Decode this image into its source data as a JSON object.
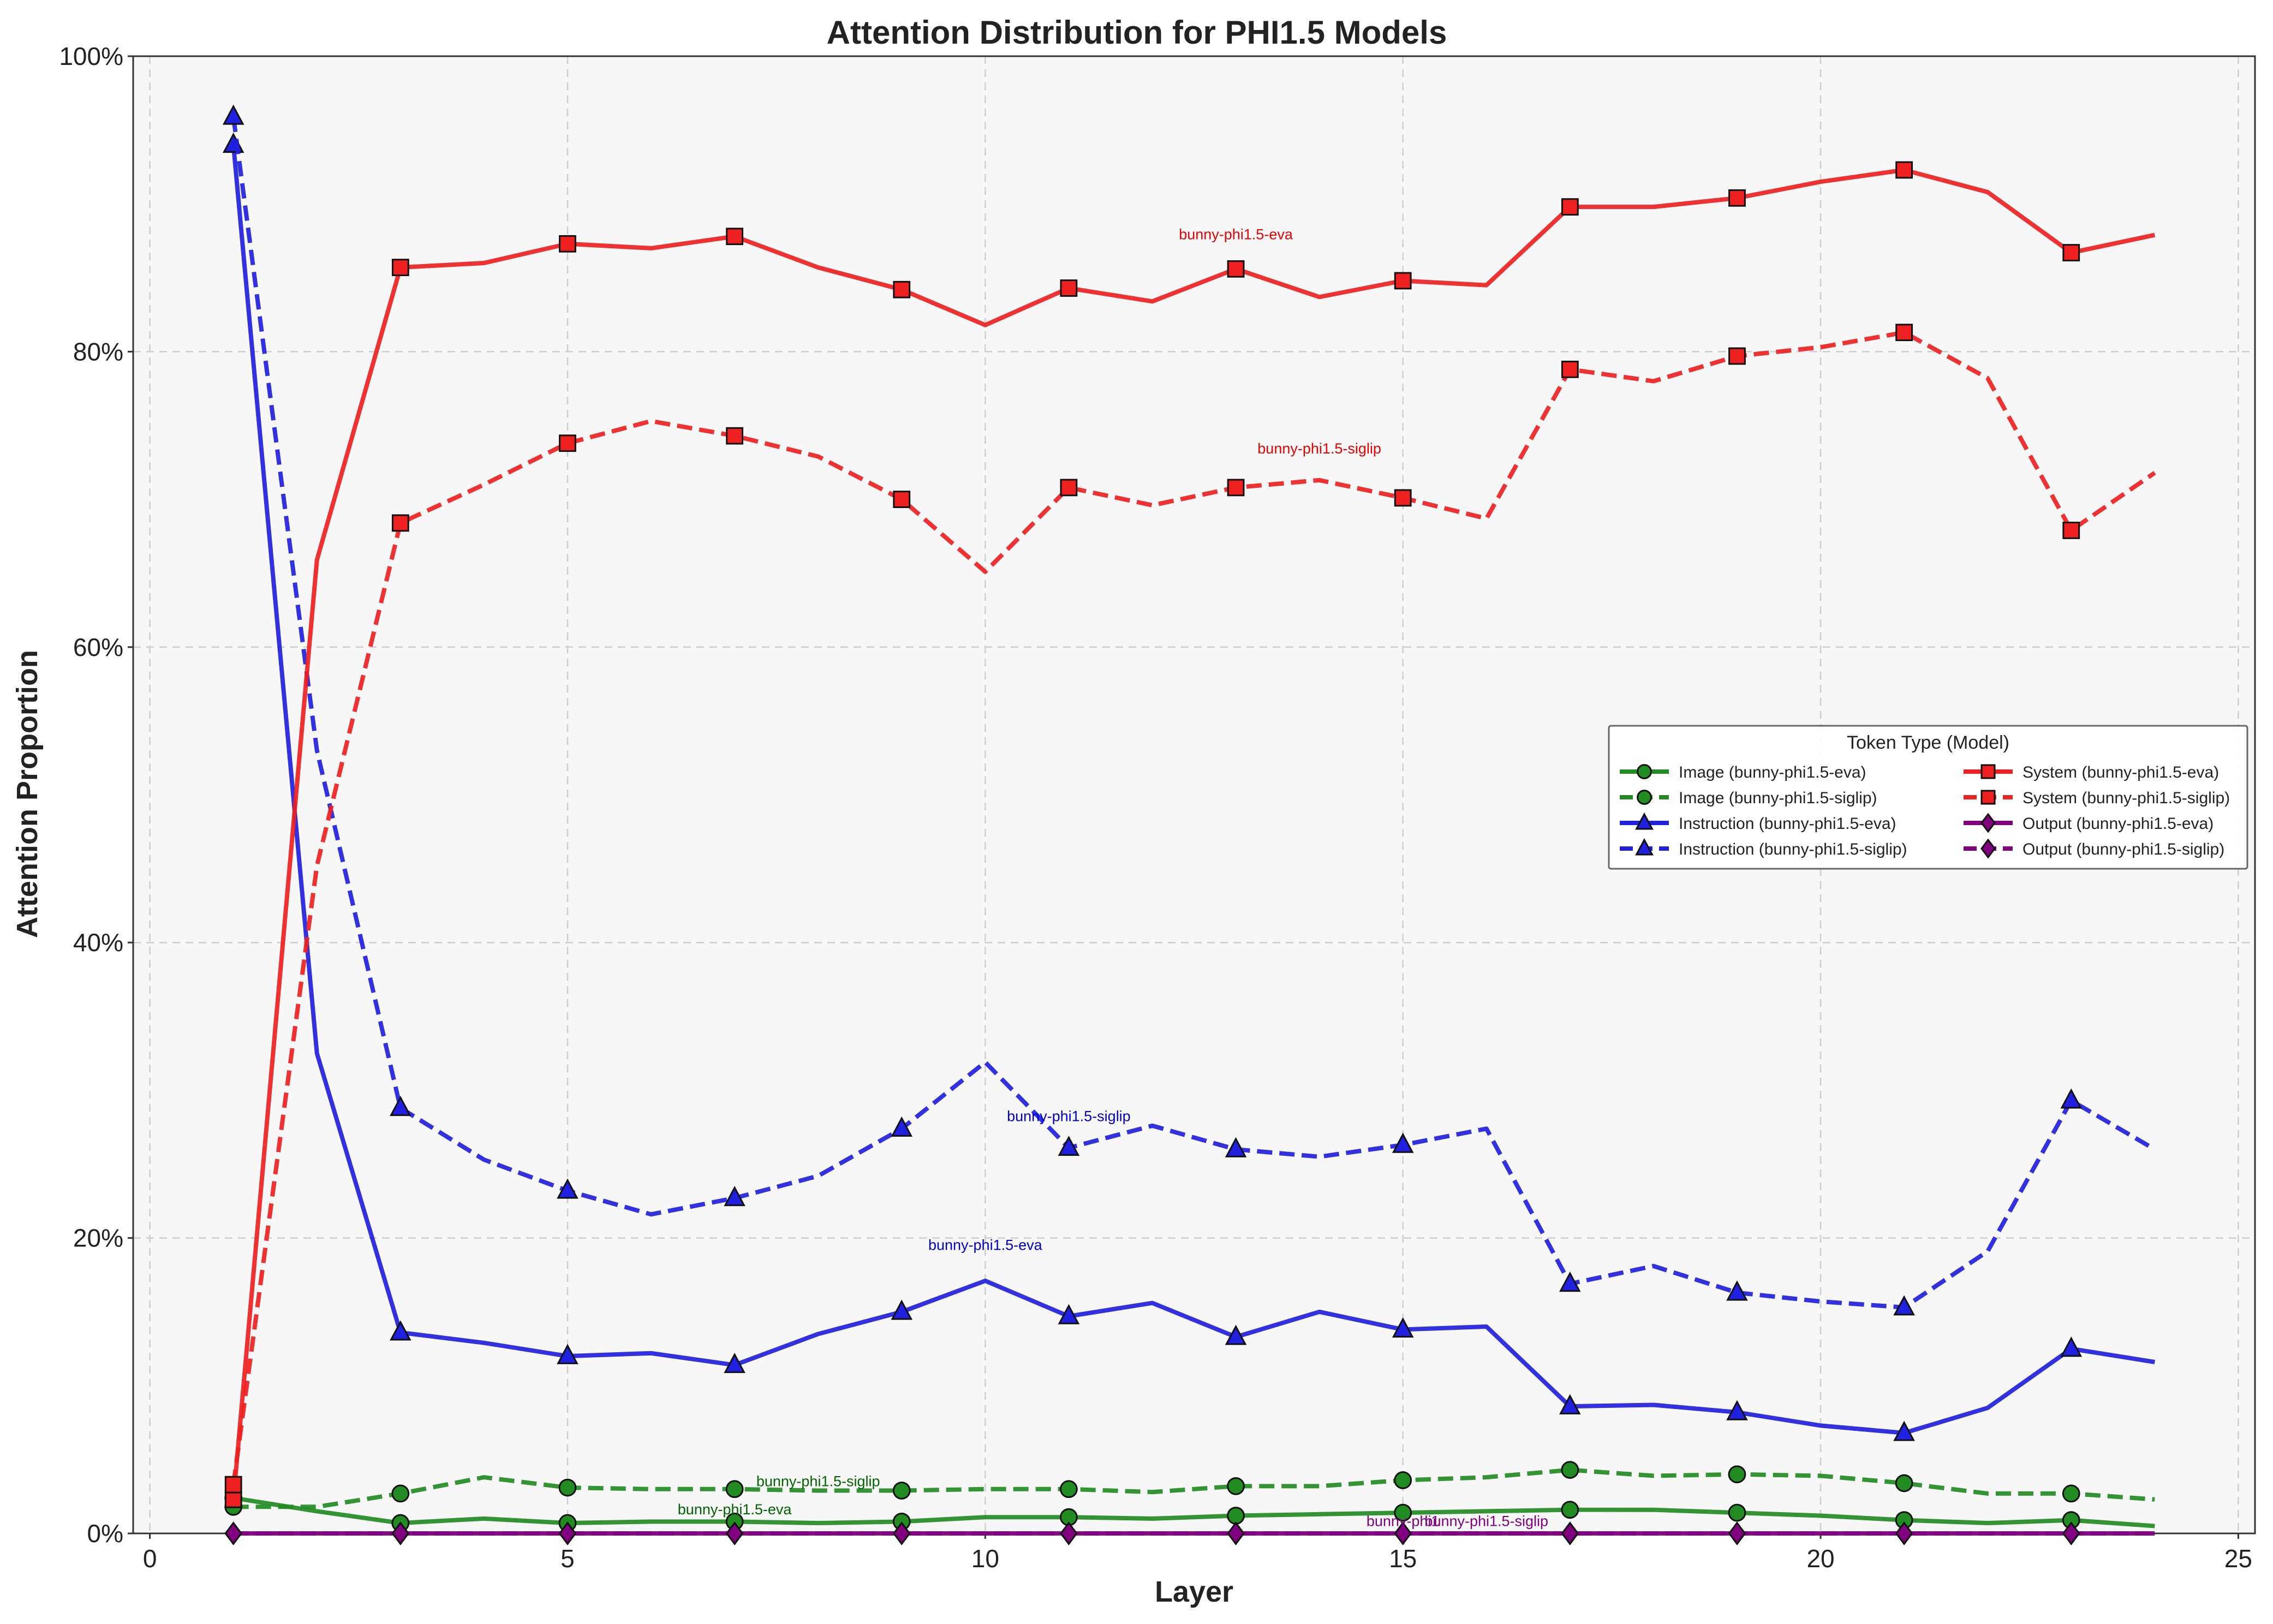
{
  "chart_data": {
    "type": "line",
    "title": "Attention Distribution for PHI1.5 Models",
    "xlabel": "Layer",
    "ylabel": "Attention Proportion",
    "xlim": [
      -0.2,
      25.2
    ],
    "ylim": [
      0,
      100
    ],
    "xticks": [
      0,
      5,
      10,
      15,
      20,
      25
    ],
    "yticks": [
      0,
      20,
      40,
      60,
      80,
      100
    ],
    "y_tick_format": "percent",
    "grid": true,
    "legend": {
      "title": "Token Type (Model)",
      "placement": "center-right",
      "columns": 2
    },
    "x": [
      1,
      2,
      3,
      4,
      5,
      6,
      7,
      8,
      9,
      10,
      11,
      12,
      13,
      14,
      15,
      16,
      17,
      18,
      19,
      20,
      21,
      22,
      23,
      24
    ],
    "series": [
      {
        "name": "Image (bunny-phi1.5-eva)",
        "color": "#228B22",
        "dash": "solid",
        "marker": "circle",
        "values": [
          2.4,
          1.5,
          0.7,
          1.0,
          0.7,
          0.8,
          0.8,
          0.7,
          0.8,
          1.1,
          1.1,
          1.0,
          1.2,
          1.3,
          1.4,
          1.5,
          1.6,
          1.6,
          1.4,
          1.2,
          0.9,
          0.7,
          0.9,
          0.5
        ]
      },
      {
        "name": "Image (bunny-phi1.5-siglip)",
        "color": "#228B22",
        "dash": "dashed",
        "marker": "circle",
        "values": [
          1.8,
          1.8,
          2.7,
          3.8,
          3.1,
          3.0,
          3.0,
          2.9,
          2.9,
          3.0,
          3.0,
          2.8,
          3.2,
          3.2,
          3.6,
          3.8,
          4.3,
          3.9,
          4.0,
          3.9,
          3.4,
          2.7,
          2.7,
          2.3
        ]
      },
      {
        "name": "Instruction (bunny-phi1.5-eva)",
        "color": "#2020E0",
        "dash": "solid",
        "marker": "triangle",
        "values": [
          94.0,
          32.5,
          13.6,
          12.9,
          12.0,
          12.2,
          11.4,
          13.5,
          15.0,
          17.1,
          14.7,
          15.6,
          13.3,
          15.0,
          13.8,
          14.0,
          8.6,
          8.7,
          8.2,
          7.3,
          6.8,
          8.5,
          12.5,
          11.6
        ]
      },
      {
        "name": "Instruction (bunny-phi1.5-siglip)",
        "color": "#2020E0",
        "dash": "dashed",
        "marker": "triangle",
        "values": [
          95.9,
          53.0,
          28.8,
          25.3,
          23.2,
          21.6,
          22.7,
          24.2,
          27.4,
          31.9,
          26.1,
          27.6,
          26.0,
          25.5,
          26.3,
          27.4,
          16.9,
          18.1,
          16.3,
          15.7,
          15.3,
          19.1,
          29.3,
          26.0
        ]
      },
      {
        "name": "System (bunny-phi1.5-eva)",
        "color": "#EE2020",
        "dash": "solid",
        "marker": "square",
        "values": [
          2.3,
          65.9,
          85.7,
          86.0,
          87.3,
          87.0,
          87.8,
          85.7,
          84.2,
          81.8,
          84.3,
          83.4,
          85.6,
          83.7,
          84.8,
          84.5,
          89.8,
          89.8,
          90.4,
          91.5,
          92.3,
          90.8,
          86.7,
          87.9
        ]
      },
      {
        "name": "System (bunny-phi1.5-siglip)",
        "color": "#EE2020",
        "dash": "dashed",
        "marker": "square",
        "values": [
          3.3,
          45.2,
          68.4,
          71.0,
          73.8,
          75.3,
          74.3,
          72.9,
          70.0,
          65.1,
          70.8,
          69.6,
          70.8,
          71.3,
          70.1,
          68.7,
          78.8,
          78.0,
          79.7,
          80.3,
          81.3,
          78.2,
          67.9,
          71.8
        ]
      },
      {
        "name": "Output (bunny-phi1.5-eva)",
        "color": "#800080",
        "dash": "solid",
        "marker": "diamond",
        "values": [
          0,
          0,
          0,
          0,
          0,
          0,
          0,
          0,
          0,
          0,
          0,
          0,
          0,
          0,
          0,
          0,
          0,
          0,
          0,
          0,
          0,
          0,
          0,
          0
        ]
      },
      {
        "name": "Output (bunny-phi1.5-siglip)",
        "color": "#800080",
        "dash": "dashed",
        "marker": "diamond",
        "values": [
          0,
          0,
          0,
          0,
          0,
          0,
          0,
          0,
          0,
          0,
          0,
          0,
          0,
          0,
          0,
          0,
          0,
          0,
          0,
          0,
          0,
          0,
          0,
          0
        ]
      }
    ],
    "annotations": [
      {
        "text": "bunny-phi1.5-eva",
        "x": 13,
        "y": 87.6,
        "color": "#EE0000"
      },
      {
        "text": "bunny-phi1.5-siglip",
        "x": 14,
        "y": 73.1,
        "color": "#EE0000"
      },
      {
        "text": "bunny-phi1.5-siglip",
        "x": 11,
        "y": 27.9,
        "color": "#0000CC"
      },
      {
        "text": "bunny-phi1.5-eva",
        "x": 10,
        "y": 19.2,
        "color": "#0000CC"
      },
      {
        "text": "bunny-phi1.5-siglip",
        "x": 8,
        "y": 3.2,
        "color": "#006400"
      },
      {
        "text": "bunny-phi1.5-eva",
        "x": 7,
        "y": 1.3,
        "color": "#006400"
      },
      {
        "text": "bunny-phi1",
        "x": 15,
        "y": 0.5,
        "color": "#800080"
      },
      {
        "text": "bunny-phi1.5-siglip",
        "x": 16,
        "y": 0.5,
        "color": "#800080"
      }
    ]
  }
}
